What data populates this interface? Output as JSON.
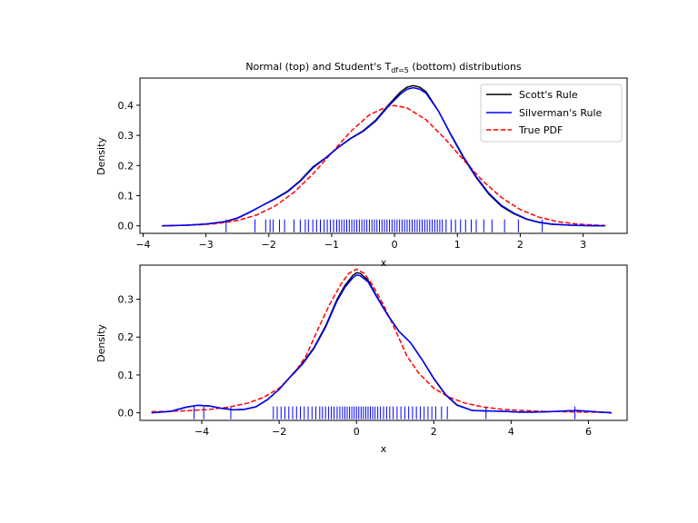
{
  "figure": {
    "title": {
      "main": "Normal (top) and Student's T",
      "sub": "df=5",
      "tail": " (bottom) distributions"
    }
  },
  "colors": {
    "scott": "#000000",
    "silverman": "#0000ff",
    "true_pdf": "#ff0000",
    "rug": "#0000ff",
    "legend_border": "#cccccc"
  },
  "chart_data": [
    {
      "type": "line",
      "panel": "top",
      "xlabel": "x",
      "ylabel": "Density",
      "xlim": [
        -4.05,
        3.7
      ],
      "ylim": [
        -0.025,
        0.49
      ],
      "xticks": [
        -4,
        -3,
        -2,
        -1,
        0,
        1,
        2,
        3
      ],
      "yticks": [
        0.0,
        0.1,
        0.2,
        0.3,
        0.4
      ],
      "ytick_labels": [
        "0.0",
        "0.1",
        "0.2",
        "0.3",
        "0.4"
      ],
      "legend": {
        "placement": "top-right",
        "entries": [
          "Scott's Rule",
          "Silverman's Rule",
          "True PDF"
        ]
      },
      "series": [
        {
          "name": "Scott's Rule",
          "style": "solid",
          "x": [
            -3.7,
            -3.3,
            -3.0,
            -2.7,
            -2.5,
            -2.3,
            -2.1,
            -1.9,
            -1.7,
            -1.5,
            -1.3,
            -1.1,
            -0.9,
            -0.7,
            -0.5,
            -0.3,
            -0.1,
            0.1,
            0.2,
            0.3,
            0.4,
            0.5,
            0.7,
            0.9,
            1.1,
            1.3,
            1.5,
            1.7,
            1.9,
            2.1,
            2.3,
            2.5,
            2.8,
            3.1,
            3.35
          ],
          "y": [
            0.0,
            0.002,
            0.006,
            0.013,
            0.025,
            0.045,
            0.068,
            0.09,
            0.115,
            0.15,
            0.195,
            0.225,
            0.26,
            0.29,
            0.315,
            0.35,
            0.4,
            0.445,
            0.46,
            0.465,
            0.46,
            0.445,
            0.38,
            0.3,
            0.225,
            0.16,
            0.105,
            0.065,
            0.04,
            0.022,
            0.011,
            0.005,
            0.002,
            0.0005,
            0.0
          ]
        },
        {
          "name": "Silverman's Rule",
          "style": "solid",
          "x": [
            -3.7,
            -3.3,
            -3.0,
            -2.7,
            -2.5,
            -2.3,
            -2.1,
            -1.9,
            -1.7,
            -1.5,
            -1.3,
            -1.1,
            -0.9,
            -0.7,
            -0.5,
            -0.3,
            -0.1,
            0.1,
            0.2,
            0.3,
            0.4,
            0.5,
            0.7,
            0.9,
            1.1,
            1.3,
            1.5,
            1.7,
            1.9,
            2.1,
            2.3,
            2.5,
            2.8,
            3.1,
            3.35
          ],
          "y": [
            0.0,
            0.002,
            0.006,
            0.014,
            0.026,
            0.046,
            0.068,
            0.089,
            0.113,
            0.148,
            0.192,
            0.224,
            0.259,
            0.289,
            0.313,
            0.347,
            0.396,
            0.438,
            0.453,
            0.458,
            0.453,
            0.44,
            0.38,
            0.302,
            0.228,
            0.163,
            0.108,
            0.068,
            0.042,
            0.023,
            0.012,
            0.006,
            0.002,
            0.0006,
            0.0
          ]
        },
        {
          "name": "True PDF",
          "style": "dashed",
          "x": [
            -3.7,
            -3.4,
            -3.1,
            -2.8,
            -2.5,
            -2.2,
            -1.9,
            -1.6,
            -1.3,
            -1.0,
            -0.7,
            -0.4,
            -0.1,
            0.0,
            0.2,
            0.5,
            0.8,
            1.1,
            1.4,
            1.7,
            2.0,
            2.3,
            2.6,
            2.9,
            3.2,
            3.35
          ],
          "y": [
            0.0004,
            0.0012,
            0.0033,
            0.0079,
            0.0175,
            0.0355,
            0.0656,
            0.1109,
            0.1714,
            0.242,
            0.3123,
            0.3683,
            0.397,
            0.3989,
            0.391,
            0.3521,
            0.2897,
            0.2179,
            0.1497,
            0.094,
            0.054,
            0.0283,
            0.0136,
            0.006,
            0.0024,
            0.0015
          ]
        }
      ],
      "rug": [
        -2.68,
        -2.22,
        -2.05,
        -1.98,
        -1.93,
        -1.83,
        -1.75,
        -1.6,
        -1.5,
        -1.42,
        -1.37,
        -1.3,
        -1.24,
        -1.18,
        -1.12,
        -1.07,
        -1.02,
        -0.97,
        -0.92,
        -0.88,
        -0.84,
        -0.8,
        -0.76,
        -0.72,
        -0.68,
        -0.64,
        -0.6,
        -0.56,
        -0.52,
        -0.48,
        -0.44,
        -0.4,
        -0.36,
        -0.32,
        -0.28,
        -0.24,
        -0.2,
        -0.16,
        -0.12,
        -0.08,
        -0.04,
        0.0,
        0.04,
        0.08,
        0.12,
        0.16,
        0.2,
        0.24,
        0.28,
        0.32,
        0.36,
        0.4,
        0.44,
        0.48,
        0.52,
        0.56,
        0.6,
        0.64,
        0.68,
        0.72,
        0.76,
        0.82,
        0.9,
        0.97,
        1.05,
        1.13,
        1.22,
        1.3,
        1.42,
        1.55,
        1.75,
        1.97,
        2.35
      ]
    },
    {
      "type": "line",
      "panel": "bottom",
      "xlabel": "x",
      "ylabel": "Density",
      "xlim": [
        -5.6,
        7.0
      ],
      "ylim": [
        -0.02,
        0.39
      ],
      "xticks": [
        -4,
        -2,
        0,
        2,
        4,
        6
      ],
      "yticks": [
        0.0,
        0.1,
        0.2,
        0.3
      ],
      "ytick_labels": [
        "0.0",
        "0.1",
        "0.2",
        "0.3"
      ],
      "series": [
        {
          "name": "Scott's Rule",
          "style": "solid",
          "x": [
            -5.3,
            -4.8,
            -4.4,
            -4.1,
            -3.8,
            -3.5,
            -3.2,
            -2.9,
            -2.6,
            -2.3,
            -2.0,
            -1.7,
            -1.4,
            -1.1,
            -0.8,
            -0.5,
            -0.3,
            -0.1,
            0.0,
            0.1,
            0.3,
            0.5,
            0.8,
            1.1,
            1.4,
            1.7,
            2.0,
            2.3,
            2.6,
            3.0,
            3.4,
            3.8,
            4.2,
            4.6,
            5.0,
            5.4,
            5.7,
            6.0,
            6.3,
            6.6
          ],
          "y": [
            0.0,
            0.004,
            0.015,
            0.02,
            0.018,
            0.012,
            0.008,
            0.009,
            0.016,
            0.035,
            0.062,
            0.097,
            0.13,
            0.172,
            0.229,
            0.3,
            0.336,
            0.362,
            0.37,
            0.368,
            0.35,
            0.312,
            0.26,
            0.215,
            0.185,
            0.14,
            0.09,
            0.048,
            0.02,
            0.006,
            0.005,
            0.004,
            0.002,
            0.002,
            0.003,
            0.005,
            0.006,
            0.004,
            0.002,
            0.0
          ]
        },
        {
          "name": "Silverman's Rule",
          "style": "solid",
          "x": [
            -5.3,
            -4.8,
            -4.4,
            -4.1,
            -3.8,
            -3.5,
            -3.2,
            -2.9,
            -2.6,
            -2.3,
            -2.0,
            -1.7,
            -1.4,
            -1.1,
            -0.8,
            -0.5,
            -0.3,
            -0.1,
            0.0,
            0.1,
            0.3,
            0.5,
            0.8,
            1.1,
            1.4,
            1.7,
            2.0,
            2.3,
            2.6,
            3.0,
            3.4,
            3.8,
            4.2,
            4.6,
            5.0,
            5.4,
            5.7,
            6.0,
            6.3,
            6.6
          ],
          "y": [
            0.0,
            0.004,
            0.015,
            0.02,
            0.018,
            0.012,
            0.008,
            0.009,
            0.016,
            0.035,
            0.062,
            0.096,
            0.128,
            0.17,
            0.226,
            0.296,
            0.331,
            0.356,
            0.364,
            0.362,
            0.346,
            0.31,
            0.259,
            0.215,
            0.185,
            0.14,
            0.091,
            0.049,
            0.021,
            0.006,
            0.005,
            0.004,
            0.002,
            0.002,
            0.003,
            0.005,
            0.006,
            0.004,
            0.002,
            0.0
          ]
        },
        {
          "name": "True PDF",
          "style": "dashed",
          "x": [
            -5.3,
            -4.8,
            -4.3,
            -3.8,
            -3.3,
            -2.8,
            -2.4,
            -2.0,
            -1.6,
            -1.3,
            -1.0,
            -0.7,
            -0.4,
            -0.2,
            0.0,
            0.2,
            0.4,
            0.7,
            1.0,
            1.3,
            1.6,
            2.0,
            2.4,
            2.8,
            3.3,
            3.8,
            4.3,
            4.8,
            5.3,
            5.8,
            6.3,
            6.6
          ],
          "y": [
            0.003,
            0.004,
            0.006,
            0.009,
            0.015,
            0.026,
            0.041,
            0.065,
            0.106,
            0.151,
            0.22,
            0.285,
            0.34,
            0.368,
            0.3796,
            0.368,
            0.34,
            0.285,
            0.22,
            0.151,
            0.106,
            0.065,
            0.041,
            0.026,
            0.015,
            0.009,
            0.006,
            0.004,
            0.003,
            0.002,
            0.0015,
            0.0012
          ]
        }
      ],
      "rug": [
        -4.2,
        -3.95,
        -3.25,
        -2.15,
        -2.05,
        -1.95,
        -1.85,
        -1.75,
        -1.65,
        -1.55,
        -1.45,
        -1.35,
        -1.25,
        -1.15,
        -1.05,
        -0.95,
        -0.88,
        -0.8,
        -0.72,
        -0.65,
        -0.58,
        -0.5,
        -0.43,
        -0.36,
        -0.3,
        -0.24,
        -0.18,
        -0.12,
        -0.06,
        0.0,
        0.06,
        0.12,
        0.18,
        0.24,
        0.3,
        0.36,
        0.42,
        0.48,
        0.55,
        0.62,
        0.7,
        0.78,
        0.86,
        0.95,
        1.05,
        1.15,
        1.25,
        1.35,
        1.45,
        1.55,
        1.65,
        1.75,
        1.85,
        1.95,
        2.05,
        2.2,
        2.35,
        3.35,
        5.65
      ]
    }
  ]
}
